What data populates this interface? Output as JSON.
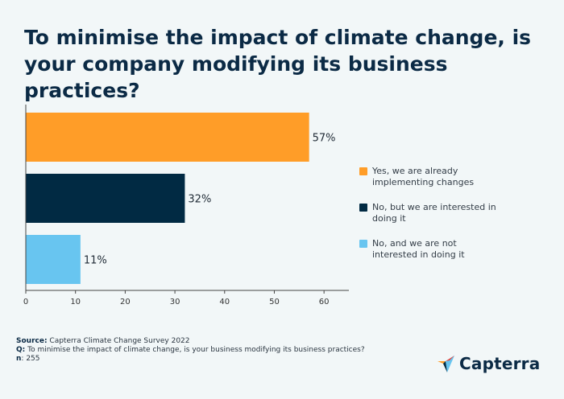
{
  "title": "To minimise the impact of climate change, is your company modifying its business practices?",
  "chart_data": {
    "type": "bar",
    "orientation": "horizontal",
    "categories": [
      "Yes, we are already implementing changes",
      "No, but we are interested in doing it",
      "No, and we are not interested in doing it"
    ],
    "values": [
      57,
      32,
      11
    ],
    "data_labels": [
      "57%",
      "32%",
      "11%"
    ],
    "colors": [
      "#ff9d28",
      "#012a43",
      "#68c5f0"
    ],
    "xlim": [
      0,
      65
    ],
    "xticks": [
      0,
      10,
      20,
      30,
      40,
      50,
      60
    ],
    "grid": false,
    "legend_position": "right"
  },
  "legend": [
    {
      "label": "Yes, we are already implementing changes",
      "color": "#ff9d28"
    },
    {
      "label": "No, but we are interested in doing it",
      "color": "#012a43"
    },
    {
      "label": "No, and we are not interested in doing it",
      "color": "#68c5f0"
    }
  ],
  "footer": {
    "source_label": "Source:",
    "source_text": " Capterra Climate Change Survey 2022",
    "q_label": "Q:",
    "q_text": " To minimise the impact of climate change, is your business modifying its business practices?",
    "n_label": "n",
    "n_text": ": 255"
  },
  "brand": {
    "name": "Capterra",
    "icon": "capterra-logo-icon"
  }
}
